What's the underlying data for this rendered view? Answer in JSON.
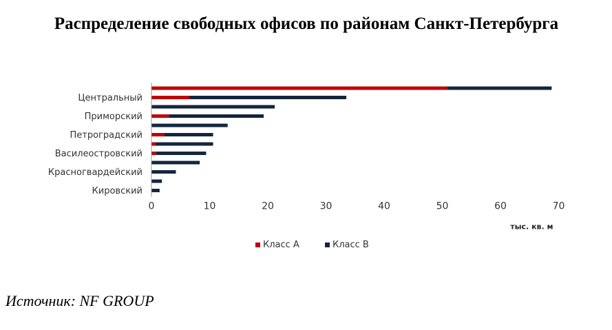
{
  "title": "Распределение свободных офисов по районам Санкт-Петербурга",
  "source": "Источник: NF GROUP",
  "colors": {
    "class_a": "#c00000",
    "class_b": "#13263d",
    "axis": "#999999"
  },
  "chart_data": {
    "type": "bar",
    "orientation": "horizontal",
    "stacked": true,
    "title": "Распределение свободных офисов по районам Санкт-Петербурга",
    "xlabel": "тыс. кв. м",
    "xlim": [
      0,
      70
    ],
    "xticks": [
      0,
      10,
      20,
      30,
      40,
      50,
      60,
      70
    ],
    "categories": [
      "",
      "Центральный",
      "",
      "Приморский",
      "",
      "Петроградский",
      "",
      "Василеостровский",
      "",
      "Красногвардейский",
      "",
      "Кировский"
    ],
    "series": [
      {
        "name": "Класс А",
        "values": [
          50.8,
          6.5,
          0,
          3.0,
          0,
          2.2,
          0.7,
          0.8,
          0,
          0,
          0,
          0
        ]
      },
      {
        "name": "Класс В",
        "values": [
          18.0,
          27.0,
          21.2,
          16.3,
          13.1,
          8.4,
          9.9,
          8.6,
          8.3,
          4.2,
          1.8,
          1.4
        ]
      }
    ],
    "legend": "bottom",
    "grid": false
  }
}
